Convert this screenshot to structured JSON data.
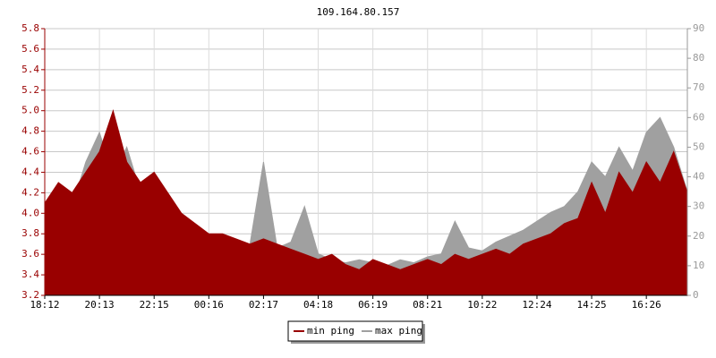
{
  "chart_data": {
    "type": "area",
    "title": "109.164.80.157",
    "categories": [
      "18:12",
      null,
      null,
      null,
      "20:13",
      null,
      null,
      null,
      "22:15",
      null,
      null,
      null,
      "00:16",
      null,
      null,
      null,
      "02:17",
      null,
      null,
      null,
      "04:18",
      null,
      null,
      null,
      "06:19",
      null,
      null,
      null,
      "08:21",
      null,
      null,
      null,
      "10:22",
      null,
      null,
      null,
      "12:24",
      null,
      null,
      null,
      "14:25",
      null,
      null,
      null,
      "16:26",
      null,
      null,
      null
    ],
    "series": [
      {
        "name": "max ping",
        "color": "#a0a0a0",
        "axis": "y2",
        "values": [
          25,
          35,
          30,
          45,
          55,
          40,
          50,
          35,
          30,
          28,
          24,
          22,
          20,
          20,
          18,
          17,
          45,
          16,
          18,
          30,
          14,
          12,
          11,
          12,
          11,
          10,
          12,
          11,
          13,
          14,
          25,
          16,
          15,
          18,
          20,
          22,
          25,
          28,
          30,
          35,
          45,
          40,
          50,
          42,
          55,
          60,
          50,
          35
        ]
      },
      {
        "name": "min ping",
        "color": "#990000",
        "values": [
          4.1,
          4.3,
          4.2,
          4.4,
          4.6,
          5.0,
          4.5,
          4.3,
          4.4,
          4.2,
          4.0,
          3.9,
          3.8,
          3.8,
          3.75,
          3.7,
          3.75,
          3.7,
          3.65,
          3.6,
          3.55,
          3.6,
          3.5,
          3.45,
          3.55,
          3.5,
          3.45,
          3.5,
          3.55,
          3.5,
          3.6,
          3.55,
          3.6,
          3.65,
          3.6,
          3.7,
          3.75,
          3.8,
          3.9,
          3.95,
          4.3,
          4.0,
          4.4,
          4.2,
          4.5,
          4.3,
          4.6,
          4.2
        ]
      }
    ],
    "ylim": [
      3.2,
      5.8
    ],
    "yticks": [
      3.2,
      3.4,
      3.6,
      3.8,
      {
        "value": 4,
        "label": "4.0"
      },
      4.2,
      4.4,
      4.6,
      4.8,
      {
        "value": 5,
        "label": "5.0"
      },
      5.2,
      5.4,
      5.6,
      5.8
    ],
    "y2lim": [
      0,
      90
    ],
    "y2ticks": [
      0,
      10,
      20,
      30,
      40,
      50,
      60,
      70,
      80,
      90
    ],
    "grid": true,
    "legend": "bottom"
  }
}
